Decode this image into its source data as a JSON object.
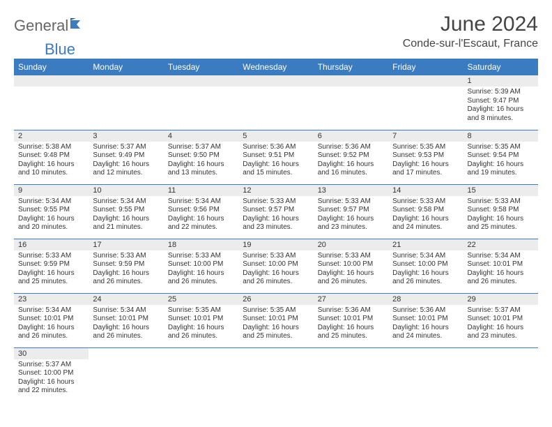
{
  "brand": {
    "general": "General",
    "blue": "Blue"
  },
  "title": "June 2024",
  "location": "Conde-sur-l'Escaut, France",
  "colors": {
    "header_bg": "#3b7bbf",
    "header_text": "#ffffff",
    "stripe": "#ececec",
    "rule": "#3b7bbf"
  },
  "layout": {
    "cols": 7,
    "rows": 6,
    "first_day_col": 6,
    "days_in_month": 30
  },
  "weekdays": [
    "Sunday",
    "Monday",
    "Tuesday",
    "Wednesday",
    "Thursday",
    "Friday",
    "Saturday"
  ],
  "days": [
    {
      "n": 1,
      "sunrise": "5:39 AM",
      "sunset": "9:47 PM",
      "daylight": "16 hours and 8 minutes."
    },
    {
      "n": 2,
      "sunrise": "5:38 AM",
      "sunset": "9:48 PM",
      "daylight": "16 hours and 10 minutes."
    },
    {
      "n": 3,
      "sunrise": "5:37 AM",
      "sunset": "9:49 PM",
      "daylight": "16 hours and 12 minutes."
    },
    {
      "n": 4,
      "sunrise": "5:37 AM",
      "sunset": "9:50 PM",
      "daylight": "16 hours and 13 minutes."
    },
    {
      "n": 5,
      "sunrise": "5:36 AM",
      "sunset": "9:51 PM",
      "daylight": "16 hours and 15 minutes."
    },
    {
      "n": 6,
      "sunrise": "5:36 AM",
      "sunset": "9:52 PM",
      "daylight": "16 hours and 16 minutes."
    },
    {
      "n": 7,
      "sunrise": "5:35 AM",
      "sunset": "9:53 PM",
      "daylight": "16 hours and 17 minutes."
    },
    {
      "n": 8,
      "sunrise": "5:35 AM",
      "sunset": "9:54 PM",
      "daylight": "16 hours and 19 minutes."
    },
    {
      "n": 9,
      "sunrise": "5:34 AM",
      "sunset": "9:55 PM",
      "daylight": "16 hours and 20 minutes."
    },
    {
      "n": 10,
      "sunrise": "5:34 AM",
      "sunset": "9:55 PM",
      "daylight": "16 hours and 21 minutes."
    },
    {
      "n": 11,
      "sunrise": "5:34 AM",
      "sunset": "9:56 PM",
      "daylight": "16 hours and 22 minutes."
    },
    {
      "n": 12,
      "sunrise": "5:33 AM",
      "sunset": "9:57 PM",
      "daylight": "16 hours and 23 minutes."
    },
    {
      "n": 13,
      "sunrise": "5:33 AM",
      "sunset": "9:57 PM",
      "daylight": "16 hours and 23 minutes."
    },
    {
      "n": 14,
      "sunrise": "5:33 AM",
      "sunset": "9:58 PM",
      "daylight": "16 hours and 24 minutes."
    },
    {
      "n": 15,
      "sunrise": "5:33 AM",
      "sunset": "9:58 PM",
      "daylight": "16 hours and 25 minutes."
    },
    {
      "n": 16,
      "sunrise": "5:33 AM",
      "sunset": "9:59 PM",
      "daylight": "16 hours and 25 minutes."
    },
    {
      "n": 17,
      "sunrise": "5:33 AM",
      "sunset": "9:59 PM",
      "daylight": "16 hours and 26 minutes."
    },
    {
      "n": 18,
      "sunrise": "5:33 AM",
      "sunset": "10:00 PM",
      "daylight": "16 hours and 26 minutes."
    },
    {
      "n": 19,
      "sunrise": "5:33 AM",
      "sunset": "10:00 PM",
      "daylight": "16 hours and 26 minutes."
    },
    {
      "n": 20,
      "sunrise": "5:33 AM",
      "sunset": "10:00 PM",
      "daylight": "16 hours and 26 minutes."
    },
    {
      "n": 21,
      "sunrise": "5:34 AM",
      "sunset": "10:00 PM",
      "daylight": "16 hours and 26 minutes."
    },
    {
      "n": 22,
      "sunrise": "5:34 AM",
      "sunset": "10:01 PM",
      "daylight": "16 hours and 26 minutes."
    },
    {
      "n": 23,
      "sunrise": "5:34 AM",
      "sunset": "10:01 PM",
      "daylight": "16 hours and 26 minutes."
    },
    {
      "n": 24,
      "sunrise": "5:34 AM",
      "sunset": "10:01 PM",
      "daylight": "16 hours and 26 minutes."
    },
    {
      "n": 25,
      "sunrise": "5:35 AM",
      "sunset": "10:01 PM",
      "daylight": "16 hours and 26 minutes."
    },
    {
      "n": 26,
      "sunrise": "5:35 AM",
      "sunset": "10:01 PM",
      "daylight": "16 hours and 25 minutes."
    },
    {
      "n": 27,
      "sunrise": "5:36 AM",
      "sunset": "10:01 PM",
      "daylight": "16 hours and 25 minutes."
    },
    {
      "n": 28,
      "sunrise": "5:36 AM",
      "sunset": "10:01 PM",
      "daylight": "16 hours and 24 minutes."
    },
    {
      "n": 29,
      "sunrise": "5:37 AM",
      "sunset": "10:01 PM",
      "daylight": "16 hours and 23 minutes."
    },
    {
      "n": 30,
      "sunrise": "5:37 AM",
      "sunset": "10:00 PM",
      "daylight": "16 hours and 22 minutes."
    }
  ],
  "labels": {
    "sunrise": "Sunrise:",
    "sunset": "Sunset:",
    "daylight": "Daylight:"
  }
}
